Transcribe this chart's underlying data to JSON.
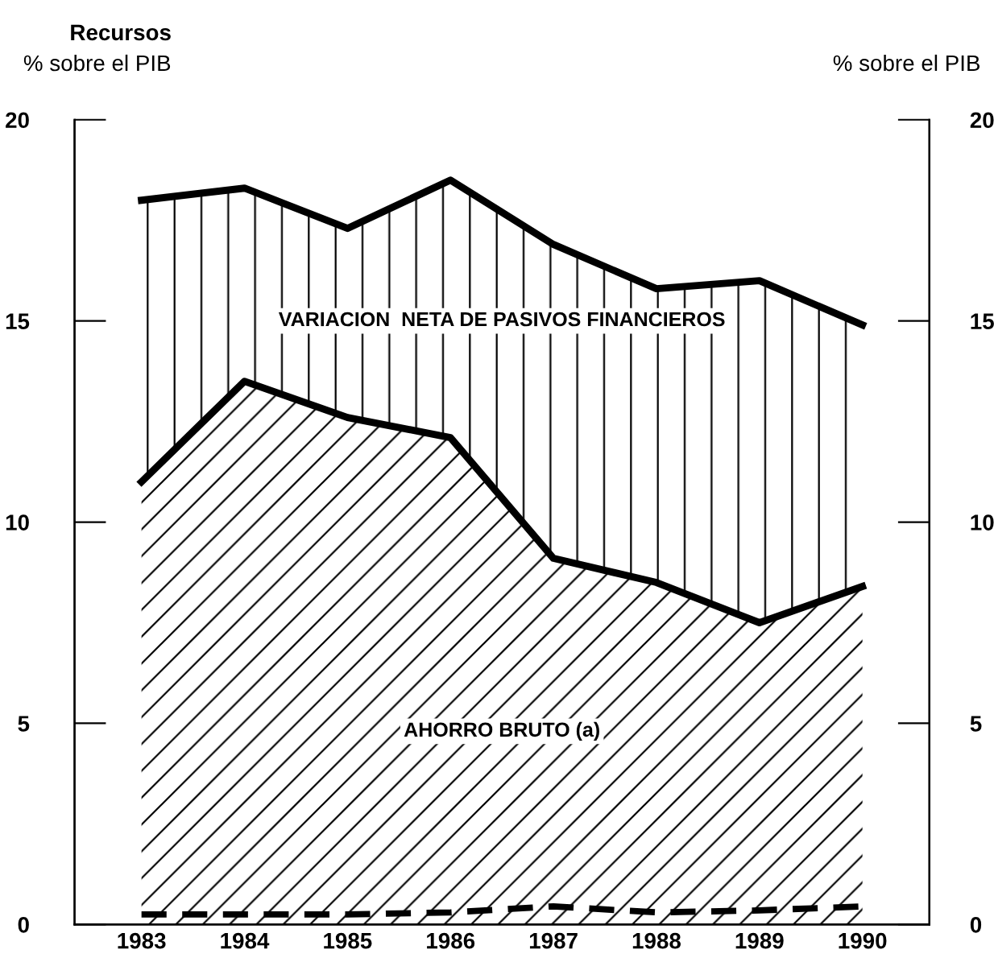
{
  "chart_data": {
    "type": "area",
    "stacked": true,
    "title": "Recursos",
    "ylabel": "% sobre el PIB",
    "y2label": "% sobre el PIB",
    "categories": [
      "1983",
      "1984",
      "1985",
      "1986",
      "1987",
      "1988",
      "1989",
      "1990"
    ],
    "series": [
      {
        "name": "AHORRO BRUTO (a)",
        "color": "#000000",
        "values": [
          11.0,
          13.5,
          12.6,
          12.1,
          9.1,
          8.5,
          7.5,
          8.4
        ]
      },
      {
        "name": "VARIACION  NETA DE PASIVOS FINANCIEROS",
        "color": "#000000",
        "values": [
          7.0,
          4.8,
          4.7,
          6.4,
          7.8,
          7.3,
          8.5,
          6.5
        ]
      },
      {
        "type": "line",
        "color": "#000000",
        "line_style": "dashed",
        "values": [
          0.25,
          0.25,
          0.25,
          0.3,
          0.45,
          0.3,
          0.35,
          0.45
        ]
      }
    ],
    "ylim": [
      0,
      20
    ],
    "yticks": [
      0,
      5,
      10,
      15,
      20
    ],
    "y2lim": [
      0,
      20
    ],
    "y2ticks": [
      0,
      5,
      10,
      15,
      20
    ],
    "grid": false
  }
}
